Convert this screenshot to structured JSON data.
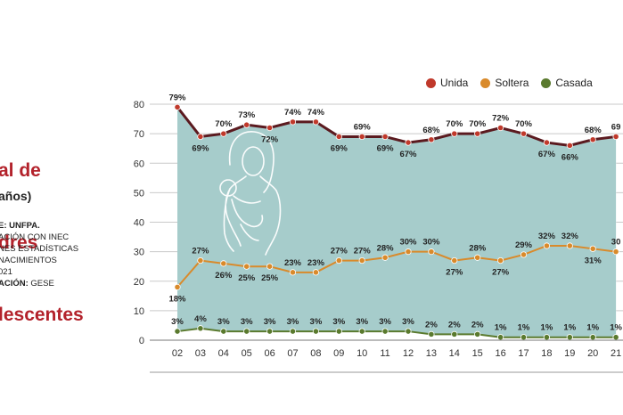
{
  "title_lines": [
    "al de",
    "dres",
    "lescentes"
  ],
  "subtitle": "años)",
  "meta_lines": [
    {
      "bold": "E: UNFPA.",
      "text": ""
    },
    {
      "bold": "",
      "text": "ACIÓN CON INEC"
    },
    {
      "bold": "",
      "text": "NES ESTADÍSTICAS"
    },
    {
      "bold": "",
      "text": "NACIMIENTOS"
    },
    {
      "bold": "",
      "text": "021"
    },
    {
      "bold": "ACIÓN:",
      "text": " GESE"
    }
  ],
  "legend": [
    {
      "label": "Unida",
      "color": "#c0392b"
    },
    {
      "label": "Soltera",
      "color": "#d98a2b"
    },
    {
      "label": "Casada",
      "color": "#5a7a2e"
    }
  ],
  "chart_data": {
    "type": "line",
    "categories": [
      "02",
      "03",
      "04",
      "05",
      "06",
      "07",
      "08",
      "09",
      "10",
      "11",
      "12",
      "13",
      "14",
      "15",
      "16",
      "17",
      "18",
      "19",
      "20",
      "21"
    ],
    "ylim": [
      0,
      80
    ],
    "yticks": [
      0,
      10,
      20,
      30,
      40,
      50,
      60,
      70,
      80
    ],
    "series": [
      {
        "name": "Unida",
        "color": "#5b1a1f",
        "marker": "#c0392b",
        "values": [
          79,
          69,
          70,
          73,
          72,
          74,
          74,
          69,
          69,
          69,
          67,
          68,
          70,
          70,
          72,
          70,
          67,
          66,
          68,
          69
        ],
        "labels": [
          "79%",
          "69%",
          "70%",
          "73%",
          "72%",
          "74%",
          "74%",
          "69%",
          "69%",
          "69%",
          "67%",
          "68%",
          "70%",
          "70%",
          "72%",
          "70%",
          "67%",
          "66%",
          "68%",
          "69"
        ]
      },
      {
        "name": "Soltera",
        "color": "#d98a2b",
        "marker": "#d98a2b",
        "values": [
          18,
          27,
          26,
          25,
          25,
          23,
          23,
          27,
          27,
          28,
          30,
          30,
          27,
          28,
          27,
          29,
          32,
          32,
          31,
          30
        ],
        "labels": [
          "18%",
          "27%",
          "26%",
          "25%",
          "25%",
          "23%",
          "23%",
          "27%",
          "27%",
          "28%",
          "30%",
          "30%",
          "27%",
          "28%",
          "27%",
          "29%",
          "32%",
          "32%",
          "31%",
          "30"
        ]
      },
      {
        "name": "Casada",
        "color": "#5a7a2e",
        "marker": "#5a7a2e",
        "values": [
          3,
          4,
          3,
          3,
          3,
          3,
          3,
          3,
          3,
          3,
          3,
          2,
          2,
          2,
          1,
          1,
          1,
          1,
          1,
          1
        ],
        "labels": [
          "3%",
          "4%",
          "3%",
          "3%",
          "3%",
          "3%",
          "3%",
          "3%",
          "3%",
          "3%",
          "3%",
          "2%",
          "2%",
          "2%",
          "1%",
          "1%",
          "1%",
          "1%",
          "1%",
          "1%"
        ]
      }
    ]
  }
}
